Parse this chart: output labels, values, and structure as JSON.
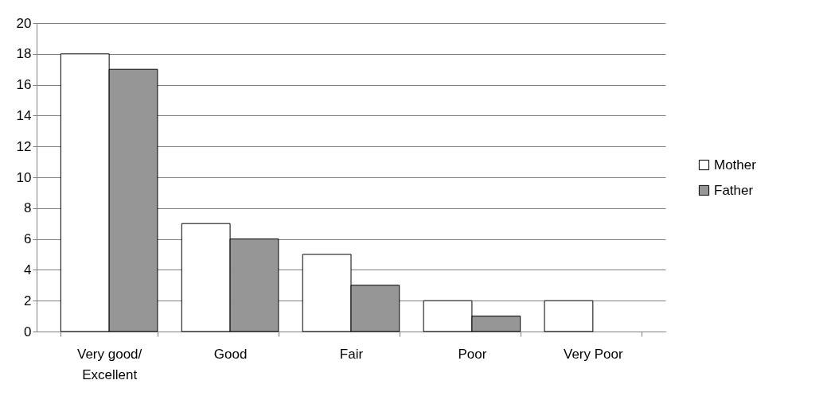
{
  "chart_data": {
    "type": "bar",
    "categories": [
      "Very good/Excellent",
      "Good",
      "Fair",
      "Poor",
      "Very Poor"
    ],
    "series": [
      {
        "name": "Mother",
        "color": "#ffffff",
        "values": [
          18,
          7,
          5,
          2,
          2
        ]
      },
      {
        "name": "Father",
        "color": "#969696",
        "values": [
          17,
          6,
          3,
          1,
          0
        ]
      }
    ],
    "ylim": [
      0,
      20
    ],
    "yticks": [
      0,
      2,
      4,
      6,
      8,
      10,
      12,
      14,
      16,
      18,
      20
    ],
    "grid": "y",
    "legend": "right"
  }
}
